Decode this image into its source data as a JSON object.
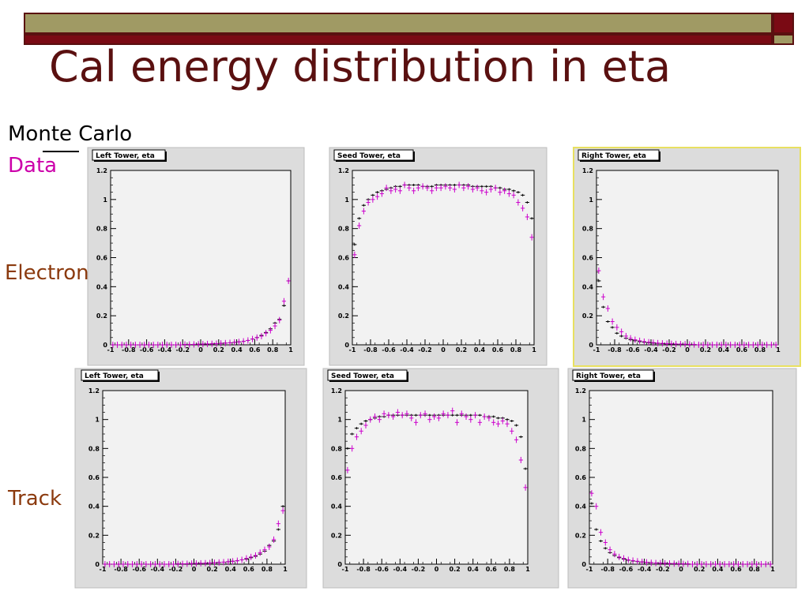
{
  "slide": {
    "title": "Cal energy distribution in eta",
    "legend": {
      "monte_carlo": "Monte Carlo",
      "data": "Data"
    },
    "row_labels": [
      "Electron",
      "Track"
    ]
  },
  "colors": {
    "header_band": "#a09a64",
    "header_band_accent": "#7a0a14",
    "title": "#5a1010",
    "row_label": "#8b3a0e",
    "data_points": "#cc00cc",
    "monte_carlo_points": "#000000",
    "panel_background": "#f2f2f2",
    "selected_frame": "#e8e060"
  },
  "chart_data": [
    {
      "type": "scatter",
      "row": "Electron",
      "title": "Left Tower, eta",
      "xlim": [
        -1,
        1
      ],
      "ylim": [
        0,
        1.2
      ],
      "x_ticks": [
        "-1",
        "-0.8",
        "-0.6",
        "-0.4",
        "-0.2",
        "0",
        "0.2",
        "0.4",
        "0.6",
        "0.8",
        "1"
      ],
      "y_ticks": [
        "0",
        "0.2",
        "0.4",
        "0.6",
        "0.8",
        "1",
        "1.2"
      ],
      "x": [
        -0.975,
        -0.925,
        -0.875,
        -0.825,
        -0.775,
        -0.725,
        -0.675,
        -0.625,
        -0.575,
        -0.525,
        -0.475,
        -0.425,
        -0.375,
        -0.325,
        -0.275,
        -0.225,
        -0.175,
        -0.125,
        -0.075,
        -0.025,
        0.025,
        0.075,
        0.125,
        0.175,
        0.225,
        0.275,
        0.325,
        0.375,
        0.425,
        0.475,
        0.525,
        0.575,
        0.625,
        0.675,
        0.725,
        0.775,
        0.825,
        0.875,
        0.925,
        0.975
      ],
      "series": [
        {
          "name": "Monte Carlo",
          "values": [
            0,
            0,
            0,
            0,
            0,
            0,
            0,
            0,
            0,
            0,
            0,
            0,
            0,
            0,
            0,
            0,
            0.002,
            0.002,
            0.003,
            0.004,
            0.005,
            0.006,
            0.007,
            0.008,
            0.01,
            0.012,
            0.014,
            0.017,
            0.02,
            0.024,
            0.03,
            0.04,
            0.05,
            0.065,
            0.085,
            0.11,
            0.15,
            0.175,
            0.27,
            0.44
          ]
        },
        {
          "name": "Data",
          "values": [
            0,
            0,
            0,
            0,
            0,
            0,
            0,
            0,
            0,
            0,
            0,
            0,
            0,
            0,
            0,
            0,
            0.002,
            0.002,
            0.003,
            0.004,
            0.005,
            0.006,
            0.007,
            0.008,
            0.01,
            0.012,
            0.014,
            0.017,
            0.02,
            0.024,
            0.03,
            0.04,
            0.05,
            0.06,
            0.08,
            0.1,
            0.13,
            0.17,
            0.3,
            0.44
          ]
        }
      ]
    },
    {
      "type": "scatter",
      "row": "Electron",
      "title": "Seed Tower, eta",
      "xlim": [
        -1,
        1
      ],
      "ylim": [
        0,
        1.2
      ],
      "x_ticks": [
        "-1",
        "-0.8",
        "-0.6",
        "-0.4",
        "-0.2",
        "0",
        "0.2",
        "0.4",
        "0.6",
        "0.8",
        "1"
      ],
      "y_ticks": [
        "0",
        "0.2",
        "0.4",
        "0.6",
        "0.8",
        "1",
        "1.2"
      ],
      "x": [
        -0.975,
        -0.925,
        -0.875,
        -0.825,
        -0.775,
        -0.725,
        -0.675,
        -0.625,
        -0.575,
        -0.525,
        -0.475,
        -0.425,
        -0.375,
        -0.325,
        -0.275,
        -0.225,
        -0.175,
        -0.125,
        -0.075,
        -0.025,
        0.025,
        0.075,
        0.125,
        0.175,
        0.225,
        0.275,
        0.325,
        0.375,
        0.425,
        0.475,
        0.525,
        0.575,
        0.625,
        0.675,
        0.725,
        0.775,
        0.825,
        0.875,
        0.925,
        0.975
      ],
      "series": [
        {
          "name": "Monte Carlo",
          "values": [
            0.69,
            0.87,
            0.96,
            1.0,
            1.03,
            1.05,
            1.06,
            1.07,
            1.08,
            1.09,
            1.09,
            1.1,
            1.1,
            1.1,
            1.1,
            1.09,
            1.09,
            1.09,
            1.1,
            1.1,
            1.1,
            1.1,
            1.1,
            1.1,
            1.1,
            1.1,
            1.09,
            1.09,
            1.09,
            1.09,
            1.09,
            1.08,
            1.08,
            1.07,
            1.07,
            1.06,
            1.05,
            1.03,
            0.98,
            0.87
          ]
        },
        {
          "name": "Data",
          "values": [
            0.62,
            0.82,
            0.92,
            0.98,
            1.0,
            1.02,
            1.04,
            1.08,
            1.06,
            1.07,
            1.06,
            1.1,
            1.08,
            1.06,
            1.08,
            1.09,
            1.08,
            1.06,
            1.08,
            1.08,
            1.09,
            1.08,
            1.07,
            1.1,
            1.08,
            1.09,
            1.07,
            1.08,
            1.06,
            1.05,
            1.07,
            1.08,
            1.05,
            1.06,
            1.04,
            1.03,
            0.98,
            0.94,
            0.88,
            0.74
          ]
        }
      ]
    },
    {
      "type": "scatter",
      "row": "Electron",
      "title": "Right Tower, eta",
      "xlim": [
        -1,
        1
      ],
      "ylim": [
        0,
        1.2
      ],
      "x_ticks": [
        "-1",
        "-0.8",
        "-0.6",
        "-0.4",
        "-0.2",
        "0",
        "0.2",
        "0.4",
        "0.6",
        "0.8",
        "1"
      ],
      "y_ticks": [
        "0",
        "0.2",
        "0.4",
        "0.6",
        "0.8",
        "1",
        "1.2"
      ],
      "x": [
        -0.975,
        -0.925,
        -0.875,
        -0.825,
        -0.775,
        -0.725,
        -0.675,
        -0.625,
        -0.575,
        -0.525,
        -0.475,
        -0.425,
        -0.375,
        -0.325,
        -0.275,
        -0.225,
        -0.175,
        -0.125,
        -0.075,
        -0.025,
        0.025,
        0.075,
        0.125,
        0.175,
        0.225,
        0.275,
        0.325,
        0.375,
        0.425,
        0.475,
        0.525,
        0.575,
        0.625,
        0.675,
        0.725,
        0.775,
        0.825,
        0.875,
        0.925,
        0.975
      ],
      "series": [
        {
          "name": "Monte Carlo",
          "values": [
            0.44,
            0.26,
            0.16,
            0.12,
            0.08,
            0.06,
            0.045,
            0.035,
            0.028,
            0.022,
            0.018,
            0.015,
            0.012,
            0.01,
            0.008,
            0.007,
            0.006,
            0.005,
            0.004,
            0.003,
            0.002,
            0.002,
            0,
            0,
            0,
            0,
            0,
            0,
            0,
            0,
            0,
            0,
            0,
            0,
            0,
            0,
            0,
            0,
            0,
            0
          ]
        },
        {
          "name": "Data",
          "values": [
            0.51,
            0.33,
            0.25,
            0.16,
            0.12,
            0.09,
            0.06,
            0.045,
            0.035,
            0.028,
            0.022,
            0.018,
            0.015,
            0.012,
            0.01,
            0.008,
            0.007,
            0.006,
            0.005,
            0.004,
            0.003,
            0.002,
            0,
            0,
            0,
            0,
            0,
            0,
            0,
            0,
            0,
            0,
            0,
            0,
            0,
            0,
            0,
            0,
            0,
            0
          ]
        }
      ]
    },
    {
      "type": "scatter",
      "row": "Track",
      "title": "Left Tower, eta",
      "xlim": [
        -1,
        1
      ],
      "ylim": [
        0,
        1.2
      ],
      "x_ticks": [
        "-1",
        "-0.8",
        "-0.6",
        "-0.4",
        "-0.2",
        "0",
        "0.2",
        "0.4",
        "0.6",
        "0.8",
        "1"
      ],
      "y_ticks": [
        "0",
        "0.2",
        "0.4",
        "0.6",
        "0.8",
        "1",
        "1.2"
      ],
      "x": [
        -0.975,
        -0.925,
        -0.875,
        -0.825,
        -0.775,
        -0.725,
        -0.675,
        -0.625,
        -0.575,
        -0.525,
        -0.475,
        -0.425,
        -0.375,
        -0.325,
        -0.275,
        -0.225,
        -0.175,
        -0.125,
        -0.075,
        -0.025,
        0.025,
        0.075,
        0.125,
        0.175,
        0.225,
        0.275,
        0.325,
        0.375,
        0.425,
        0.475,
        0.525,
        0.575,
        0.625,
        0.675,
        0.725,
        0.775,
        0.825,
        0.875,
        0.925,
        0.975
      ],
      "series": [
        {
          "name": "Monte Carlo",
          "values": [
            0,
            0,
            0,
            0,
            0,
            0,
            0,
            0,
            0,
            0,
            0,
            0,
            0,
            0,
            0,
            0,
            0.002,
            0.002,
            0.003,
            0.004,
            0.005,
            0.006,
            0.007,
            0.008,
            0.01,
            0.012,
            0.014,
            0.017,
            0.02,
            0.024,
            0.03,
            0.035,
            0.045,
            0.055,
            0.07,
            0.09,
            0.13,
            0.16,
            0.24,
            0.4
          ]
        },
        {
          "name": "Data",
          "values": [
            0,
            0,
            0,
            0,
            0,
            0,
            0,
            0,
            0,
            0,
            0,
            0,
            0,
            0,
            0,
            0,
            0.002,
            0.002,
            0.003,
            0.004,
            0.005,
            0.006,
            0.007,
            0.008,
            0.01,
            0.012,
            0.014,
            0.017,
            0.02,
            0.024,
            0.03,
            0.04,
            0.05,
            0.06,
            0.08,
            0.1,
            0.12,
            0.17,
            0.28,
            0.37
          ]
        }
      ]
    },
    {
      "type": "scatter",
      "row": "Track",
      "title": "Seed Tower, eta",
      "xlim": [
        -1,
        1
      ],
      "ylim": [
        0,
        1.2
      ],
      "x_ticks": [
        "-1",
        "-0.8",
        "-0.6",
        "-0.4",
        "-0.2",
        "0",
        "0.2",
        "0.4",
        "0.6",
        "0.8",
        "1"
      ],
      "y_ticks": [
        "0",
        "0.2",
        "0.4",
        "0.6",
        "0.8",
        "1",
        "1.2"
      ],
      "x": [
        -0.975,
        -0.925,
        -0.875,
        -0.825,
        -0.775,
        -0.725,
        -0.675,
        -0.625,
        -0.575,
        -0.525,
        -0.475,
        -0.425,
        -0.375,
        -0.325,
        -0.275,
        -0.225,
        -0.175,
        -0.125,
        -0.075,
        -0.025,
        0.025,
        0.075,
        0.125,
        0.175,
        0.225,
        0.275,
        0.325,
        0.375,
        0.425,
        0.475,
        0.525,
        0.575,
        0.625,
        0.675,
        0.725,
        0.775,
        0.825,
        0.875,
        0.925,
        0.975
      ],
      "series": [
        {
          "name": "Monte Carlo",
          "values": [
            0.8,
            0.9,
            0.94,
            0.97,
            0.99,
            1.0,
            1.01,
            1.02,
            1.02,
            1.03,
            1.03,
            1.03,
            1.03,
            1.03,
            1.03,
            1.03,
            1.03,
            1.03,
            1.03,
            1.03,
            1.03,
            1.03,
            1.03,
            1.03,
            1.03,
            1.03,
            1.03,
            1.03,
            1.03,
            1.03,
            1.02,
            1.02,
            1.02,
            1.01,
            1.01,
            1.0,
            0.99,
            0.96,
            0.88,
            0.66
          ]
        },
        {
          "name": "Data",
          "values": [
            0.65,
            0.8,
            0.88,
            0.92,
            0.96,
            1.0,
            1.02,
            1.0,
            1.04,
            1.03,
            1.02,
            1.05,
            1.03,
            1.04,
            1.01,
            0.98,
            1.03,
            1.04,
            1.0,
            1.02,
            1.01,
            1.04,
            1.03,
            1.06,
            0.98,
            1.04,
            1.02,
            1.0,
            1.03,
            0.98,
            1.02,
            1.01,
            0.98,
            0.97,
            0.99,
            0.97,
            0.92,
            0.86,
            0.72,
            0.53
          ]
        }
      ]
    },
    {
      "type": "scatter",
      "row": "Track",
      "title": "Right Tower, eta",
      "xlim": [
        -1,
        1
      ],
      "ylim": [
        0,
        1.2
      ],
      "x_ticks": [
        "-1",
        "-0.8",
        "-0.6",
        "-0.4",
        "-0.2",
        "0",
        "0.2",
        "0.4",
        "0.6",
        "0.8",
        "1"
      ],
      "y_ticks": [
        "0",
        "0.2",
        "0.4",
        "0.6",
        "0.8",
        "1",
        "1.2"
      ],
      "x": [
        -0.975,
        -0.925,
        -0.875,
        -0.825,
        -0.775,
        -0.725,
        -0.675,
        -0.625,
        -0.575,
        -0.525,
        -0.475,
        -0.425,
        -0.375,
        -0.325,
        -0.275,
        -0.225,
        -0.175,
        -0.125,
        -0.075,
        -0.025,
        0.025,
        0.075,
        0.125,
        0.175,
        0.225,
        0.275,
        0.325,
        0.375,
        0.425,
        0.475,
        0.525,
        0.575,
        0.625,
        0.675,
        0.725,
        0.775,
        0.825,
        0.875,
        0.925,
        0.975
      ],
      "series": [
        {
          "name": "Monte Carlo",
          "values": [
            0.42,
            0.24,
            0.16,
            0.11,
            0.08,
            0.06,
            0.045,
            0.035,
            0.028,
            0.022,
            0.018,
            0.015,
            0.012,
            0.01,
            0.008,
            0.007,
            0.006,
            0.005,
            0.004,
            0.003,
            0.002,
            0.002,
            0,
            0,
            0,
            0,
            0,
            0,
            0,
            0,
            0,
            0,
            0,
            0,
            0,
            0,
            0,
            0,
            0,
            0
          ]
        },
        {
          "name": "Data",
          "values": [
            0.49,
            0.4,
            0.22,
            0.15,
            0.1,
            0.07,
            0.05,
            0.04,
            0.03,
            0.025,
            0.02,
            0.016,
            0.013,
            0.01,
            0.008,
            0.007,
            0.006,
            0.005,
            0.004,
            0.003,
            0.002,
            0.002,
            0,
            0,
            0,
            0,
            0,
            0,
            0,
            0,
            0,
            0,
            0,
            0,
            0,
            0,
            0,
            0,
            0,
            0
          ]
        }
      ]
    }
  ]
}
